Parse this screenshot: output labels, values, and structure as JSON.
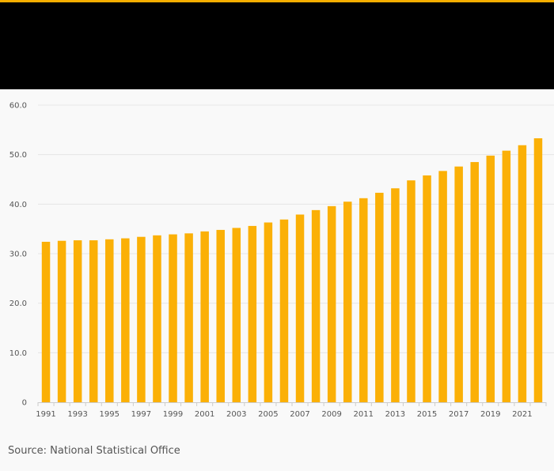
{
  "theme": {
    "accent": "#f7ae00",
    "bar": "#fbb006",
    "header_bg": "#000000",
    "bg": "#f9f9f9",
    "grid": "#e6e6e6",
    "text": "#555555"
  },
  "source": "Source: National Statistical Office",
  "chart_data": {
    "type": "bar",
    "title": "",
    "xlabel": "",
    "ylabel": "",
    "ylim": [
      0,
      60
    ],
    "yticks": [
      0,
      10,
      20,
      30,
      40,
      50,
      60
    ],
    "ytick_labels": [
      "0",
      "10.0",
      "20.0",
      "30.0",
      "40.0",
      "50.0",
      "60.0"
    ],
    "categories": [
      "1991",
      "1992",
      "1993",
      "1994",
      "1995",
      "1996",
      "1997",
      "1998",
      "1999",
      "2000",
      "2001",
      "2002",
      "2003",
      "2004",
      "2005",
      "2006",
      "2007",
      "2008",
      "2009",
      "2010",
      "2011",
      "2012",
      "2013",
      "2014",
      "2015",
      "2016",
      "2017",
      "2018",
      "2019",
      "2020",
      "2021",
      "2022"
    ],
    "xtick_labels": [
      "1991",
      "1993",
      "1995",
      "1997",
      "1999",
      "2001",
      "2003",
      "2005",
      "2007",
      "2009",
      "2011",
      "2013",
      "2015",
      "2017",
      "2019",
      "2021"
    ],
    "values": [
      32.4,
      32.6,
      32.7,
      32.7,
      32.9,
      33.1,
      33.4,
      33.7,
      33.9,
      34.1,
      34.5,
      34.8,
      35.2,
      35.6,
      36.3,
      36.9,
      37.9,
      38.8,
      39.6,
      40.5,
      41.2,
      42.3,
      43.2,
      44.8,
      45.8,
      46.7,
      47.6,
      48.5,
      49.8,
      50.8,
      51.9,
      53.3
    ]
  }
}
